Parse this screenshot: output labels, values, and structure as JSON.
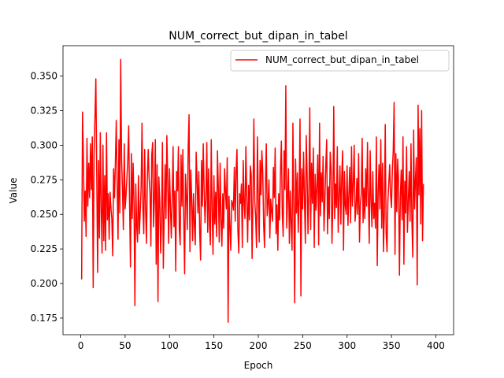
{
  "chart_data": {
    "type": "line",
    "title": "NUM_correct_but_dipan_in_tabel",
    "xlabel": "Epoch",
    "ylabel": "Value",
    "xlim": [
      -20,
      420
    ],
    "ylim": [
      0.163,
      0.372
    ],
    "xticks": [
      0,
      50,
      100,
      150,
      200,
      250,
      300,
      350,
      400
    ],
    "yticks": [
      0.175,
      0.2,
      0.225,
      0.25,
      0.275,
      0.3,
      0.325,
      0.35
    ],
    "ytick_labels": [
      "0.175",
      "0.200",
      "0.225",
      "0.250",
      "0.275",
      "0.300",
      "0.325",
      "0.350"
    ],
    "grid": false,
    "legend_position": "top-right",
    "series": [
      {
        "name": "NUM_correct_but_dipan_in_tabel",
        "color": "#ff0000",
        "x_start": 1,
        "x_step": 1,
        "values": [
          0.203,
          0.324,
          0.289,
          0.245,
          0.267,
          0.234,
          0.305,
          0.256,
          0.287,
          0.262,
          0.301,
          0.268,
          0.306,
          0.197,
          0.292,
          0.32,
          0.348,
          0.279,
          0.208,
          0.289,
          0.233,
          0.309,
          0.255,
          0.222,
          0.3,
          0.231,
          0.278,
          0.224,
          0.309,
          0.246,
          0.265,
          0.232,
          0.266,
          0.255,
          0.247,
          0.22,
          0.283,
          0.262,
          0.288,
          0.318,
          0.272,
          0.232,
          0.304,
          0.251,
          0.362,
          0.29,
          0.268,
          0.239,
          0.301,
          0.254,
          0.264,
          0.276,
          0.29,
          0.314,
          0.257,
          0.212,
          0.294,
          0.247,
          0.287,
          0.258,
          0.184,
          0.272,
          0.242,
          0.23,
          0.278,
          0.236,
          0.252,
          0.269,
          0.316,
          0.255,
          0.236,
          0.297,
          0.254,
          0.229,
          0.276,
          0.297,
          0.276,
          0.266,
          0.227,
          0.293,
          0.302,
          0.241,
          0.261,
          0.304,
          0.214,
          0.286,
          0.187,
          0.277,
          0.259,
          0.222,
          0.245,
          0.302,
          0.211,
          0.25,
          0.286,
          0.247,
          0.307,
          0.274,
          0.229,
          0.283,
          0.256,
          0.233,
          0.26,
          0.299,
          0.241,
          0.267,
          0.209,
          0.281,
          0.267,
          0.299,
          0.239,
          0.228,
          0.293,
          0.256,
          0.297,
          0.248,
          0.207,
          0.279,
          0.263,
          0.239,
          0.298,
          0.322,
          0.223,
          0.282,
          0.261,
          0.231,
          0.265,
          0.242,
          0.228,
          0.295,
          0.275,
          0.251,
          0.281,
          0.237,
          0.217,
          0.289,
          0.256,
          0.301,
          0.268,
          0.244,
          0.262,
          0.302,
          0.237,
          0.283,
          0.243,
          0.228,
          0.304,
          0.253,
          0.221,
          0.278,
          0.243,
          0.266,
          0.234,
          0.296,
          0.268,
          0.23,
          0.287,
          0.246,
          0.227,
          0.265,
          0.24,
          0.283,
          0.267,
          0.254,
          0.291,
          0.172,
          0.263,
          0.242,
          0.224,
          0.26,
          0.258,
          0.253,
          0.284,
          0.245,
          0.282,
          0.297,
          0.239,
          0.222,
          0.265,
          0.258,
          0.272,
          0.226,
          0.289,
          0.258,
          0.247,
          0.299,
          0.262,
          0.23,
          0.271,
          0.246,
          0.285,
          0.279,
          0.218,
          0.263,
          0.319,
          0.26,
          0.248,
          0.226,
          0.306,
          0.263,
          0.23,
          0.289,
          0.264,
          0.296,
          0.281,
          0.243,
          0.226,
          0.269,
          0.301,
          0.249,
          0.258,
          0.275,
          0.233,
          0.261,
          0.252,
          0.245,
          0.284,
          0.262,
          0.298,
          0.236,
          0.257,
          0.224,
          0.265,
          0.246,
          0.282,
          0.303,
          0.251,
          0.234,
          0.296,
          0.268,
          0.343,
          0.24,
          0.263,
          0.283,
          0.229,
          0.267,
          0.243,
          0.224,
          0.316,
          0.256,
          0.186,
          0.29,
          0.251,
          0.28,
          0.237,
          0.263,
          0.319,
          0.191,
          0.283,
          0.254,
          0.295,
          0.261,
          0.229,
          0.307,
          0.278,
          0.236,
          0.266,
          0.327,
          0.239,
          0.287,
          0.258,
          0.298,
          0.226,
          0.279,
          0.253,
          0.27,
          0.293,
          0.228,
          0.316,
          0.249,
          0.28,
          0.259,
          0.292,
          0.238,
          0.26,
          0.285,
          0.304,
          0.236,
          0.27,
          0.247,
          0.295,
          0.282,
          0.229,
          0.259,
          0.328,
          0.247,
          0.272,
          0.255,
          0.299,
          0.237,
          0.264,
          0.285,
          0.243,
          0.277,
          0.296,
          0.224,
          0.281,
          0.256,
          0.25,
          0.285,
          0.242,
          0.264,
          0.284,
          0.244,
          0.299,
          0.256,
          0.272,
          0.3,
          0.245,
          0.254,
          0.276,
          0.25,
          0.294,
          0.23,
          0.257,
          0.265,
          0.305,
          0.244,
          0.269,
          0.247,
          0.283,
          0.256,
          0.302,
          0.261,
          0.229,
          0.296,
          0.26,
          0.241,
          0.281,
          0.247,
          0.258,
          0.24,
          0.306,
          0.213,
          0.266,
          0.286,
          0.254,
          0.304,
          0.24,
          0.287,
          0.223,
          0.251,
          0.315,
          0.237,
          0.223,
          0.26,
          0.272,
          0.286,
          0.264,
          0.255,
          0.282,
          0.296,
          0.331,
          0.221,
          0.294,
          0.252,
          0.29,
          0.274,
          0.206,
          0.263,
          0.282,
          0.246,
          0.306,
          0.214,
          0.274,
          0.251,
          0.299,
          0.237,
          0.259,
          0.281,
          0.245,
          0.301,
          0.246,
          0.219,
          0.311,
          0.254,
          0.275,
          0.291,
          0.199,
          0.329,
          0.264,
          0.312,
          0.243,
          0.325,
          0.231,
          0.272
        ]
      }
    ]
  }
}
